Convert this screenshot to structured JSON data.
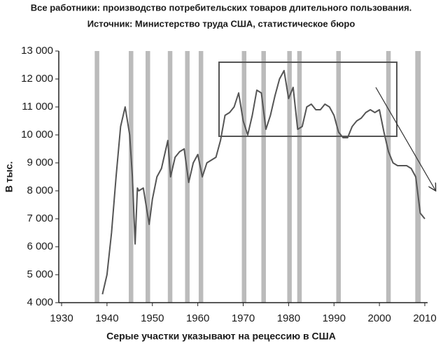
{
  "chart_data": {
    "type": "line",
    "title": "Все работники: производство потребительских товаров длительного пользования.",
    "subtitle": "Источник: Министерство труда США, статистическое бюро",
    "ylabel": "В тыс.",
    "xlabel": "Серые участки указывают на рецессию в США",
    "color": "#555555",
    "recession_color": "#bbbbbb",
    "x": [
      1939,
      1940,
      1941,
      1942,
      1943,
      1944,
      1945,
      1945.6,
      1946.2,
      1946.7,
      1947,
      1948,
      1949.3,
      1950,
      1951,
      1952,
      1953.4,
      1954,
      1955,
      1956,
      1957,
      1958,
      1959,
      1960,
      1961,
      1962,
      1963,
      1964,
      1965,
      1966,
      1967,
      1968,
      1969,
      1970,
      1971,
      1972,
      1973,
      1974,
      1975,
      1976,
      1977,
      1978,
      1979,
      1980,
      1981,
      1982,
      1983,
      1984,
      1985,
      1986,
      1987,
      1988,
      1989,
      1990,
      1991,
      1992,
      1993,
      1994,
      1995,
      1996,
      1997,
      1998,
      1999,
      2000,
      2001,
      2002,
      2003,
      2004,
      2005,
      2006,
      2007,
      2008,
      2009,
      2010
    ],
    "values": [
      4300,
      5000,
      6500,
      8500,
      10300,
      11000,
      10000,
      8500,
      6100,
      8100,
      8000,
      8100,
      6800,
      7700,
      8500,
      8800,
      9800,
      8500,
      9200,
      9400,
      9500,
      8300,
      9000,
      9300,
      8500,
      9000,
      9100,
      9200,
      9800,
      10700,
      10800,
      11000,
      11500,
      10500,
      10000,
      10700,
      11600,
      11500,
      10200,
      10700,
      11400,
      12000,
      12300,
      11300,
      11700,
      10200,
      10300,
      11000,
      11100,
      10900,
      10900,
      11100,
      11000,
      10700,
      10100,
      9900,
      9900,
      10300,
      10500,
      10600,
      10800,
      10900,
      10800,
      10900,
      10100,
      9400,
      9000,
      8900,
      8900,
      8900,
      8800,
      8500,
      7200,
      7000
    ],
    "recessions": [
      [
        1937.3,
        1938.3
      ],
      [
        1944.8,
        1945.8
      ],
      [
        1948.5,
        1949.5
      ],
      [
        1953.4,
        1954.4
      ],
      [
        1957.2,
        1958.2
      ],
      [
        1960.2,
        1961.2
      ],
      [
        1969.7,
        1970.7
      ],
      [
        1974,
        1975
      ],
      [
        1979.7,
        1980.7
      ],
      [
        1981.9,
        1982.9
      ],
      [
        1990.5,
        1991.5
      ],
      [
        2001.5,
        2002.5
      ],
      [
        2007.9,
        2009.1
      ]
    ],
    "xlim": [
      1930,
      2010
    ],
    "xticks": [
      1930,
      1940,
      1950,
      1960,
      1970,
      1980,
      1990,
      2000,
      2010
    ],
    "ylim": [
      4000,
      13000
    ],
    "yticks": [
      {
        "value": 4000,
        "label": "4 000"
      },
      {
        "value": 5000,
        "label": "5 000"
      },
      {
        "value": 6000,
        "label": "6 000"
      },
      {
        "value": 7000,
        "label": "7 000"
      },
      {
        "value": 8000,
        "label": "8 000"
      },
      {
        "value": 9000,
        "label": "9 000"
      },
      {
        "value": 10000,
        "label": "10 000"
      },
      {
        "value": 11000,
        "label": "11 000"
      },
      {
        "value": 12000,
        "label": "12 000"
      },
      {
        "value": 13000,
        "label": "13 000"
      }
    ]
  }
}
